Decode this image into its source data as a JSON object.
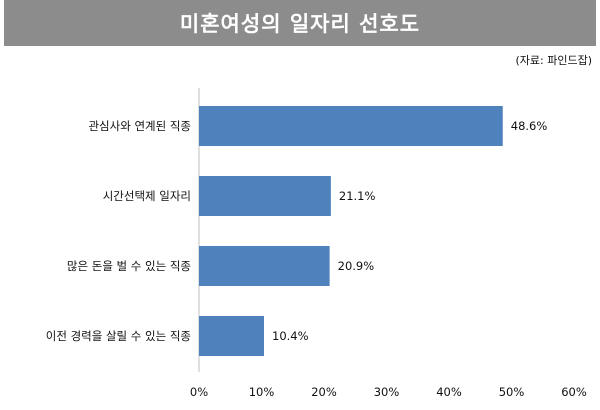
{
  "header": {
    "title": "미혼여성의 일자리 선호도"
  },
  "source": "(자료: 파인드잡)",
  "colors": {
    "bar": "#4f81bd",
    "title_bg": "#8c8c8c"
  },
  "chart_data": {
    "type": "bar",
    "orientation": "horizontal",
    "title": "미혼여성의 일자리 선호도",
    "categories": [
      "관심사와 연계된 직종",
      "시간선택제 일자리",
      "많은 돈을 벌 수 있는 직종",
      "이전 경력을 살릴 수 있는 직종"
    ],
    "values": [
      48.6,
      21.1,
      20.9,
      10.4
    ],
    "value_labels": [
      "48.6%",
      "21.1%",
      "20.9%",
      "10.4%"
    ],
    "xlim": [
      0,
      60
    ],
    "ticks": [
      0,
      10,
      20,
      30,
      40,
      50,
      60
    ],
    "tick_labels": [
      "0%",
      "10%",
      "20%",
      "30%",
      "40%",
      "50%",
      "60%"
    ],
    "grid": false,
    "legend": "none"
  }
}
